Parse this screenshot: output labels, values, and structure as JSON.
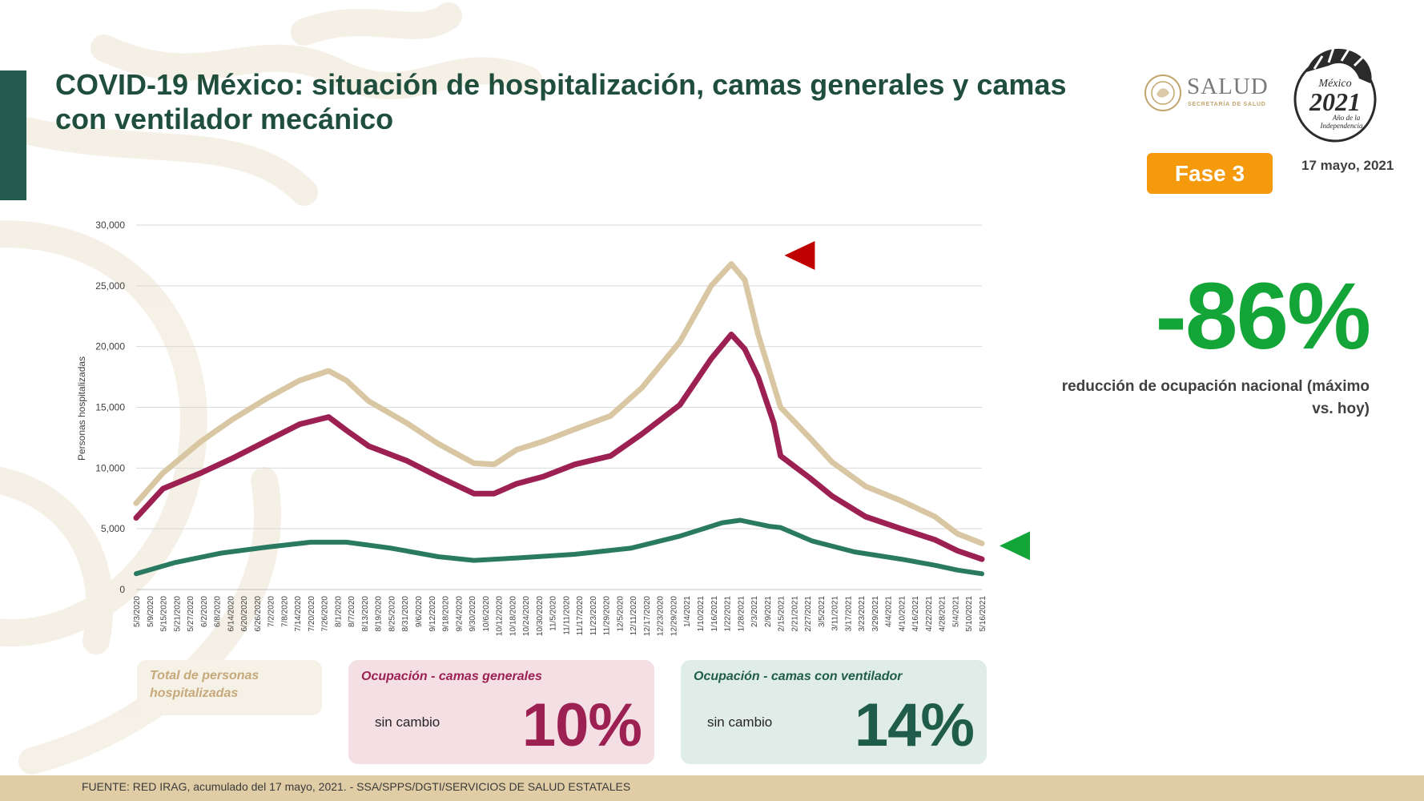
{
  "slide": {
    "title": "COVID-19 México: situación de hospitalización, camas generales y camas con ventilador mecánico",
    "logo_text": "SALUD",
    "logo_subtext": "SECRETARÍA DE SALUD",
    "seal_text": {
      "line1": "México",
      "line2": "2021",
      "line3": "Año de la",
      "line4": "Independencia"
    },
    "phase": "Fase 3",
    "date": "17 mayo, 2021",
    "reduction_percent": "-86%",
    "reduction_label": "reducción de ocupación nacional (máximo vs. hoy)",
    "source": "FUENTE: RED IRAG, acumulado del 17 mayo, 2021. -  SSA/SPPS/DGTI/SERVICIOS DE SALUD ESTATALES"
  },
  "cards": {
    "total": {
      "title": "Total de personas hospitalizadas"
    },
    "general": {
      "title": "Ocupación - camas generales",
      "status": "sin cambio",
      "value": "10%"
    },
    "ventilator": {
      "title": "Ocupación - camas con ventilador",
      "status": "sin cambio",
      "value": "14%"
    }
  },
  "colors": {
    "title": "#1f4e3d",
    "accent_bar": "#235b4e",
    "phase_badge": "#f59a0c",
    "big_percent": "#13a538",
    "total_line": "#d8c7a2",
    "general_line": "#9c2152",
    "ventilator_line": "#2a7a62",
    "peak_marker": "#c00000",
    "current_marker": "#13a538",
    "card_total_bg": "#f6f1e6",
    "card_total_text": "#c5a97a",
    "card_general_bg": "#f3dfe4",
    "card_general_text": "#9c2152",
    "card_vent_bg": "#dfece7",
    "card_vent_text": "#1f5c49",
    "footer_bg": "#e0cda6",
    "pattern": "#f5efe3",
    "salud_sub": "#c3a46c"
  },
  "icons": [
    "national-shield-icon",
    "quetzalcoatl-seal-icon",
    "peak-marker-icon",
    "current-marker-icon"
  ],
  "chart_data": {
    "type": "line",
    "ylabel": "Personas hospitalizadas",
    "xlabel": "",
    "ylim": [
      0,
      30000
    ],
    "yticks": [
      0,
      5000,
      10000,
      15000,
      20000,
      25000,
      30000
    ],
    "ytick_labels": [
      "0",
      "5,000",
      "10,000",
      "15,000",
      "20,000",
      "25,000",
      "30,000"
    ],
    "grid": true,
    "x_start": "2020-05-03",
    "x_end": "2021-05-16",
    "x_tick_labels": [
      "5/3/2020",
      "5/9/2020",
      "5/15/2020",
      "5/21/2020",
      "5/27/2020",
      "6/2/2020",
      "6/8/2020",
      "6/14/2020",
      "6/20/2020",
      "6/26/2020",
      "7/2/2020",
      "7/8/2020",
      "7/14/2020",
      "7/20/2020",
      "7/26/2020",
      "8/1/2020",
      "8/7/2020",
      "8/13/2020",
      "8/19/2020",
      "8/25/2020",
      "8/31/2020",
      "9/6/2020",
      "9/12/2020",
      "9/18/2020",
      "9/24/2020",
      "9/30/2020",
      "10/6/2020",
      "10/12/2020",
      "10/18/2020",
      "10/24/2020",
      "10/30/2020",
      "11/5/2020",
      "11/11/2020",
      "11/17/2020",
      "11/23/2020",
      "11/29/2020",
      "12/5/2020",
      "12/11/2020",
      "12/17/2020",
      "12/23/2020",
      "12/29/2020",
      "1/4/2021",
      "1/10/2021",
      "1/16/2021",
      "1/22/2021",
      "1/28/2021",
      "2/3/2021",
      "2/9/2021",
      "2/15/2021",
      "2/21/2021",
      "2/27/2021",
      "3/5/2021",
      "3/11/2021",
      "3/17/2021",
      "3/23/2021",
      "3/29/2021",
      "4/4/2021",
      "4/10/2021",
      "4/16/2021",
      "4/22/2021",
      "4/28/2021",
      "5/4/2021",
      "5/10/2021",
      "5/16/2021"
    ],
    "series": [
      {
        "key": "total",
        "x": [
          "2020-05-03",
          "2020-05-15",
          "2020-06-01",
          "2020-06-15",
          "2020-07-01",
          "2020-07-15",
          "2020-07-28",
          "2020-08-05",
          "2020-08-15",
          "2020-09-01",
          "2020-09-15",
          "2020-10-01",
          "2020-10-10",
          "2020-10-20",
          "2020-11-01",
          "2020-11-15",
          "2020-12-01",
          "2020-12-15",
          "2021-01-01",
          "2021-01-15",
          "2021-01-24",
          "2021-01-30",
          "2021-02-05",
          "2021-02-15",
          "2021-02-28",
          "2021-03-10",
          "2021-03-25",
          "2021-04-10",
          "2021-04-25",
          "2021-05-05",
          "2021-05-16"
        ],
        "values": [
          7100,
          9600,
          12200,
          14000,
          15800,
          17200,
          18000,
          17200,
          15500,
          13700,
          12000,
          10400,
          10300,
          11500,
          12200,
          13200,
          14300,
          16600,
          20400,
          25000,
          26800,
          25500,
          21000,
          15000,
          12500,
          10500,
          8500,
          7300,
          6000,
          4600,
          3800
        ]
      },
      {
        "key": "general",
        "x": [
          "2020-05-03",
          "2020-05-15",
          "2020-06-01",
          "2020-06-15",
          "2020-07-01",
          "2020-07-15",
          "2020-07-28",
          "2020-08-05",
          "2020-08-15",
          "2020-09-01",
          "2020-09-15",
          "2020-10-01",
          "2020-10-10",
          "2020-10-20",
          "2020-11-01",
          "2020-11-15",
          "2020-12-01",
          "2020-12-15",
          "2021-01-01",
          "2021-01-15",
          "2021-01-24",
          "2021-01-30",
          "2021-02-05",
          "2021-02-12",
          "2021-02-15",
          "2021-02-28",
          "2021-03-10",
          "2021-03-25",
          "2021-04-10",
          "2021-04-25",
          "2021-05-05",
          "2021-05-16"
        ],
        "values": [
          5900,
          8300,
          9600,
          10800,
          12300,
          13600,
          14200,
          13100,
          11800,
          10600,
          9300,
          7900,
          7900,
          8700,
          9300,
          10300,
          11000,
          12800,
          15200,
          19000,
          21000,
          19800,
          17500,
          13700,
          11000,
          9200,
          7700,
          6000,
          5000,
          4100,
          3200,
          2500
        ]
      },
      {
        "key": "ventilator",
        "x": [
          "2020-05-03",
          "2020-05-20",
          "2020-06-10",
          "2020-07-01",
          "2020-07-20",
          "2020-08-05",
          "2020-08-25",
          "2020-09-15",
          "2020-10-01",
          "2020-10-20",
          "2020-11-15",
          "2020-12-10",
          "2021-01-01",
          "2021-01-20",
          "2021-01-28",
          "2021-02-10",
          "2021-02-15",
          "2021-03-01",
          "2021-03-20",
          "2021-04-10",
          "2021-04-25",
          "2021-05-05",
          "2021-05-16"
        ],
        "values": [
          1300,
          2200,
          3000,
          3500,
          3900,
          3900,
          3400,
          2700,
          2400,
          2600,
          2900,
          3400,
          4400,
          5500,
          5700,
          5200,
          5100,
          4000,
          3100,
          2500,
          2000,
          1600,
          1300
        ]
      }
    ],
    "markers": [
      {
        "key": "peak",
        "x": "2021-02-06",
        "y": 27500,
        "direction": "left"
      },
      {
        "key": "current",
        "x": "2021-05-16",
        "y": 3600,
        "direction": "left"
      }
    ]
  }
}
